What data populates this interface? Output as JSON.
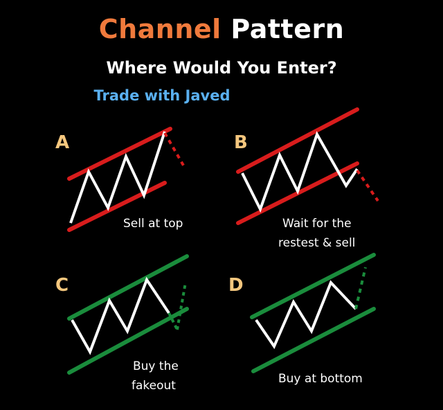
{
  "title": {
    "word1": "Channel",
    "word2": "Pattern"
  },
  "subtitle": "Where Would You Enter?",
  "credit": "Trade with Javed",
  "colors": {
    "title_accent": "#f07a3c",
    "credit": "#5ab0f0",
    "letters": "#f5c77e",
    "bearish_channel": "#d81c1c",
    "bullish_channel": "#1a8c3c",
    "price_line": "#ffffff"
  },
  "panels": [
    {
      "letter": "A",
      "caption": [
        "Sell at top"
      ]
    },
    {
      "letter": "B",
      "caption": [
        "Wait for the",
        "restest & sell"
      ]
    },
    {
      "letter": "C",
      "caption": [
        "Buy the",
        "fakeout"
      ]
    },
    {
      "letter": "D",
      "caption": [
        "Buy at bottom"
      ]
    }
  ]
}
